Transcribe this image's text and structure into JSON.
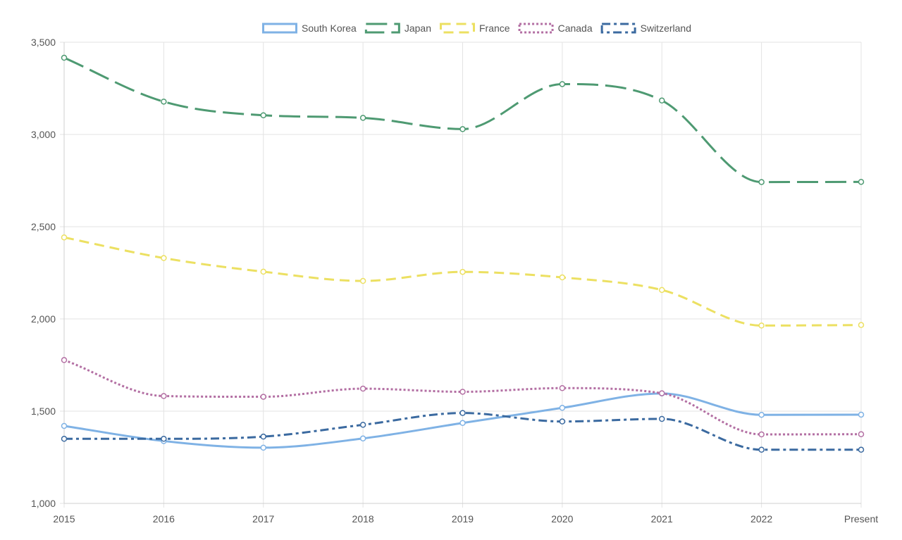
{
  "chart_data": {
    "type": "line",
    "title": "",
    "xlabel": "",
    "ylabel": "",
    "categories": [
      "2015",
      "2016",
      "2017",
      "2018",
      "2019",
      "2020",
      "2021",
      "2022",
      "Present"
    ],
    "ylim": [
      1000,
      3500
    ],
    "yticks": [
      1000,
      1500,
      2000,
      2500,
      3000,
      3500
    ],
    "ytick_labels": [
      "1,000",
      "1,500",
      "2,000",
      "2,500",
      "3,000",
      "3,500"
    ],
    "grid": true,
    "legend_position": "top-center",
    "series": [
      {
        "name": "South Korea",
        "color": "#7fb2e5",
        "style": "solid",
        "values": [
          1420,
          1338,
          1302,
          1352,
          1436,
          1518,
          1596,
          1480,
          1481
        ]
      },
      {
        "name": "Japan",
        "color": "#4e9a72",
        "style": "long-dash",
        "values": [
          3416,
          3178,
          3104,
          3090,
          3029,
          3273,
          3184,
          2742,
          2743
        ]
      },
      {
        "name": "France",
        "color": "#ece062",
        "style": "dash",
        "values": [
          2442,
          2330,
          2256,
          2206,
          2255,
          2225,
          2157,
          1964,
          1967
        ]
      },
      {
        "name": "Canada",
        "color": "#b36fa3",
        "style": "dot",
        "values": [
          1777,
          1582,
          1578,
          1622,
          1605,
          1625,
          1597,
          1374,
          1375
        ]
      },
      {
        "name": "Switzerland",
        "color": "#3b6aa0",
        "style": "dash-dot",
        "values": [
          1350,
          1350,
          1362,
          1426,
          1490,
          1444,
          1458,
          1291,
          1291
        ]
      }
    ]
  }
}
